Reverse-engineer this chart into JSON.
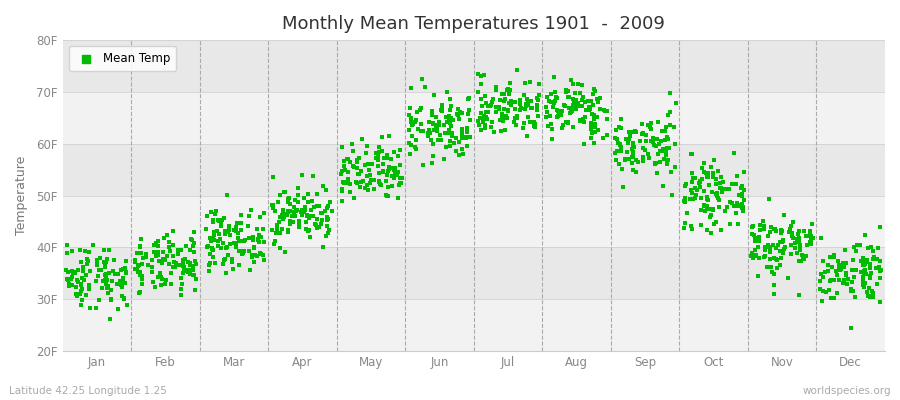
{
  "title": "Monthly Mean Temperatures 1901  -  2009",
  "ylabel": "Temperature",
  "ylim": [
    20,
    80
  ],
  "yticks": [
    20,
    30,
    40,
    50,
    60,
    70,
    80
  ],
  "ytick_labels": [
    "20F",
    "30F",
    "40F",
    "50F",
    "60F",
    "70F",
    "80F"
  ],
  "month_labels": [
    "Jan",
    "Feb",
    "Mar",
    "Apr",
    "May",
    "Jun",
    "Jul",
    "Aug",
    "Sep",
    "Oct",
    "Nov",
    "Dec"
  ],
  "dot_color": "#00bb00",
  "legend_label": "Mean Temp",
  "bottom_left": "Latitude 42.25 Longitude 1.25",
  "bottom_right": "worldspecies.org",
  "band_colors": [
    "#f2f2f2",
    "#e8e8e8"
  ],
  "monthly_means": [
    34.5,
    36.5,
    41.5,
    46.5,
    54.0,
    63.0,
    67.0,
    66.5,
    59.5,
    50.0,
    40.5,
    35.5
  ],
  "monthly_stds": [
    3.2,
    2.8,
    2.8,
    2.8,
    3.0,
    3.2,
    2.8,
    2.8,
    3.2,
    3.0,
    3.2,
    3.2
  ],
  "n_years": 109,
  "seed": 42,
  "figsize": [
    9.0,
    4.0
  ],
  "dpi": 100
}
